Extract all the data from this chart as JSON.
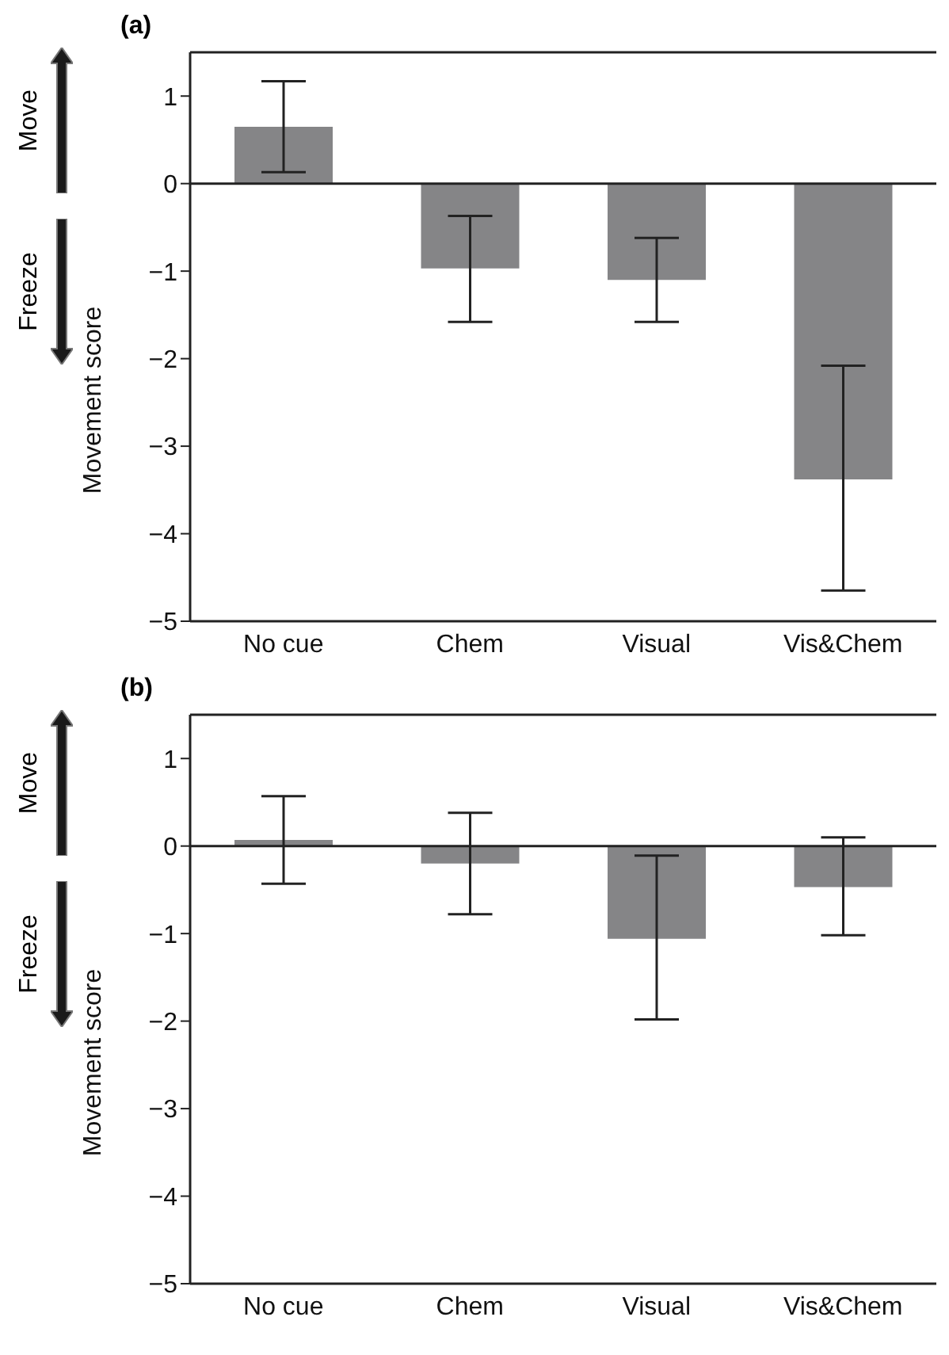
{
  "chart_data": [
    {
      "type": "bar",
      "title": "(a)",
      "ylabel": "Movement score",
      "annotations": [
        "Move",
        "Freeze"
      ],
      "categories": [
        "No cue",
        "Chem",
        "Visual",
        "Vis&Chem"
      ],
      "values": [
        0.65,
        -0.97,
        -1.1,
        -3.38
      ],
      "errors": [
        [
          0.13,
          1.17
        ],
        [
          -1.58,
          -0.37
        ],
        [
          -1.58,
          -0.62
        ],
        [
          -4.65,
          -2.08
        ]
      ],
      "color": "#858587",
      "ylim": [
        -5,
        1.5
      ],
      "yticks": [
        -5,
        -4,
        -3,
        -2,
        -1,
        0,
        1
      ],
      "ref_lines": [
        {
          "axis": "y",
          "value": 0,
          "color": "#222222"
        }
      ],
      "grid": false
    },
    {
      "type": "bar",
      "title": "(b)",
      "ylabel": "Movement score",
      "annotations": [
        "Move",
        "Freeze"
      ],
      "categories": [
        "No cue",
        "Chem",
        "Visual",
        "Vis&Chem"
      ],
      "values": [
        0.07,
        -0.2,
        -1.06,
        -0.47
      ],
      "errors": [
        [
          -0.43,
          0.57
        ],
        [
          -0.78,
          0.38
        ],
        [
          -1.98,
          -0.11
        ],
        [
          -1.02,
          0.1
        ]
      ],
      "color": "#858587",
      "ylim": [
        -5,
        1.5
      ],
      "yticks": [
        -5,
        -4,
        -3,
        -2,
        -1,
        0,
        1
      ],
      "ref_lines": [
        {
          "axis": "y",
          "value": 0,
          "color": "#222222"
        }
      ],
      "grid": false
    }
  ]
}
